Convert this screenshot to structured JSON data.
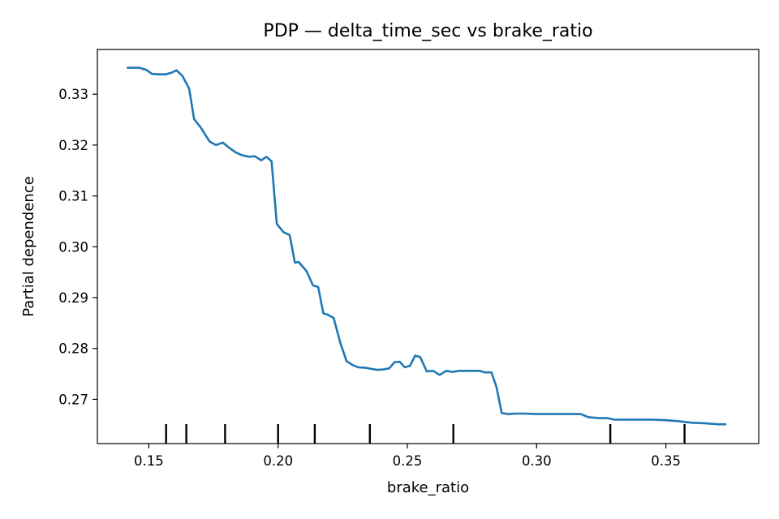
{
  "chart_data": {
    "type": "line",
    "title": "PDP — delta_time_sec vs brake_ratio",
    "xlabel": "brake_ratio",
    "ylabel": "Partial dependence",
    "xlim": [
      0.1301,
      0.3859
    ],
    "ylim": [
      0.2613,
      0.3388
    ],
    "xticks": [
      0.15,
      0.2,
      0.25,
      0.3,
      0.35
    ],
    "xtick_labels": [
      "0.15",
      "0.20",
      "0.25",
      "0.30",
      "0.35"
    ],
    "yticks": [
      0.27,
      0.28,
      0.29,
      0.3,
      0.31,
      0.32,
      0.33
    ],
    "ytick_labels": [
      "0.27",
      "0.28",
      "0.29",
      "0.30",
      "0.31",
      "0.32",
      "0.33"
    ],
    "grid": false,
    "line_color": "#1f77b4",
    "series": [
      {
        "x": [
          0.1418,
          0.1464,
          0.149,
          0.1512,
          0.1537,
          0.1565,
          0.1591,
          0.1607,
          0.163,
          0.1656,
          0.1675,
          0.17,
          0.1735,
          0.176,
          0.1786,
          0.1808,
          0.1835,
          0.186,
          0.1887,
          0.191,
          0.1935,
          0.1955,
          0.1975,
          0.1995,
          0.202,
          0.2045,
          0.2065,
          0.208,
          0.211,
          0.2135,
          0.2155,
          0.2175,
          0.219,
          0.2215,
          0.224,
          0.2265,
          0.229,
          0.231,
          0.234,
          0.236,
          0.2385,
          0.241,
          0.243,
          0.245,
          0.247,
          0.249,
          0.251,
          0.253,
          0.255,
          0.2575,
          0.26,
          0.2625,
          0.265,
          0.2675,
          0.27,
          0.2725,
          0.275,
          0.278,
          0.28,
          0.2825,
          0.2845,
          0.2865,
          0.289,
          0.292,
          0.295,
          0.3,
          0.305,
          0.31,
          0.315,
          0.317,
          0.32,
          0.324,
          0.3275,
          0.33,
          0.335,
          0.34,
          0.345,
          0.35,
          0.355,
          0.36,
          0.365,
          0.37,
          0.373
        ],
        "y": [
          0.3352,
          0.3352,
          0.3348,
          0.334,
          0.3339,
          0.3339,
          0.3343,
          0.3347,
          0.3336,
          0.3311,
          0.3251,
          0.3235,
          0.3207,
          0.32,
          0.3205,
          0.3196,
          0.3186,
          0.318,
          0.3177,
          0.3178,
          0.317,
          0.3177,
          0.3168,
          0.3045,
          0.3029,
          0.3023,
          0.2969,
          0.297,
          0.2952,
          0.2924,
          0.2921,
          0.2869,
          0.2867,
          0.286,
          0.2812,
          0.2775,
          0.2767,
          0.2763,
          0.2762,
          0.276,
          0.2758,
          0.2759,
          0.2761,
          0.2773,
          0.2774,
          0.2763,
          0.2766,
          0.2786,
          0.2783,
          0.2755,
          0.2756,
          0.2748,
          0.2756,
          0.2754,
          0.2756,
          0.2756,
          0.2756,
          0.2756,
          0.2753,
          0.2753,
          0.2724,
          0.2673,
          0.2671,
          0.2672,
          0.2672,
          0.2671,
          0.2671,
          0.2671,
          0.2671,
          0.2671,
          0.2665,
          0.2663,
          0.2663,
          0.266,
          0.266,
          0.266,
          0.266,
          0.2659,
          0.2657,
          0.2654,
          0.2653,
          0.2651,
          0.2651
        ]
      }
    ],
    "rug_deciles": [
      0.1567,
      0.1645,
      0.1795,
      0.2,
      0.2142,
      0.2355,
      0.2678,
      0.3285,
      0.3572
    ]
  }
}
